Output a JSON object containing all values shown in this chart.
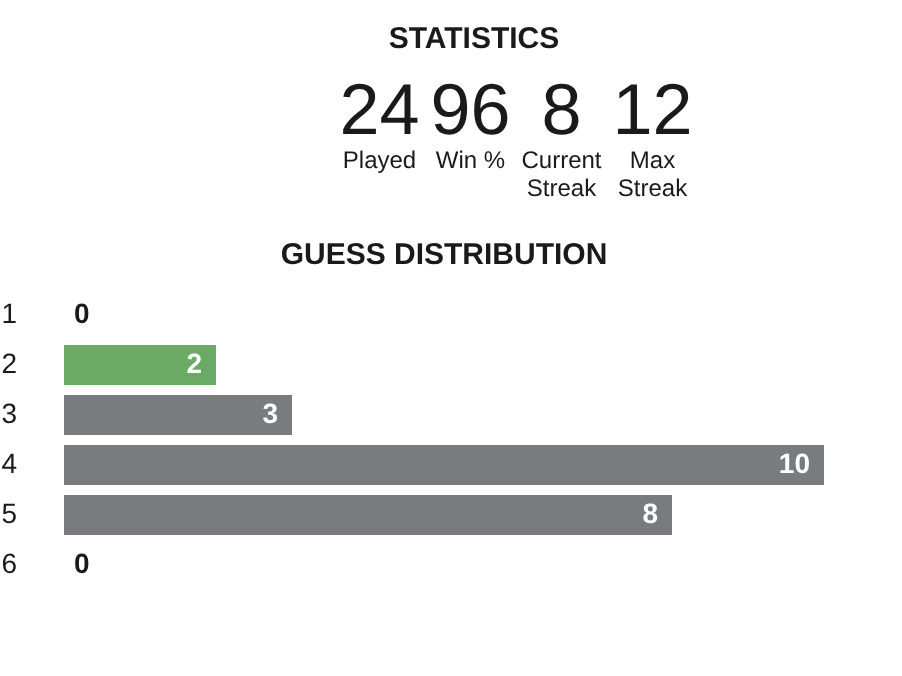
{
  "chart_data": [
    {
      "type": "other",
      "title": "STATISTICS",
      "categories": [
        "Played",
        "Win %",
        "Current Streak",
        "Max Streak"
      ],
      "values": [
        24,
        96,
        8,
        12
      ],
      "data_labels": true
    },
    {
      "type": "bar",
      "orientation": "horizontal",
      "title": "GUESS DISTRIBUTION",
      "categories": [
        "1",
        "2",
        "3",
        "4",
        "5",
        "6"
      ],
      "values": [
        0,
        2,
        3,
        10,
        8,
        0
      ],
      "colors": [
        "#787c7e",
        "#6aaa64",
        "#787c7e",
        "#787c7e",
        "#787c7e",
        "#787c7e"
      ],
      "data_labels": true
    }
  ]
}
